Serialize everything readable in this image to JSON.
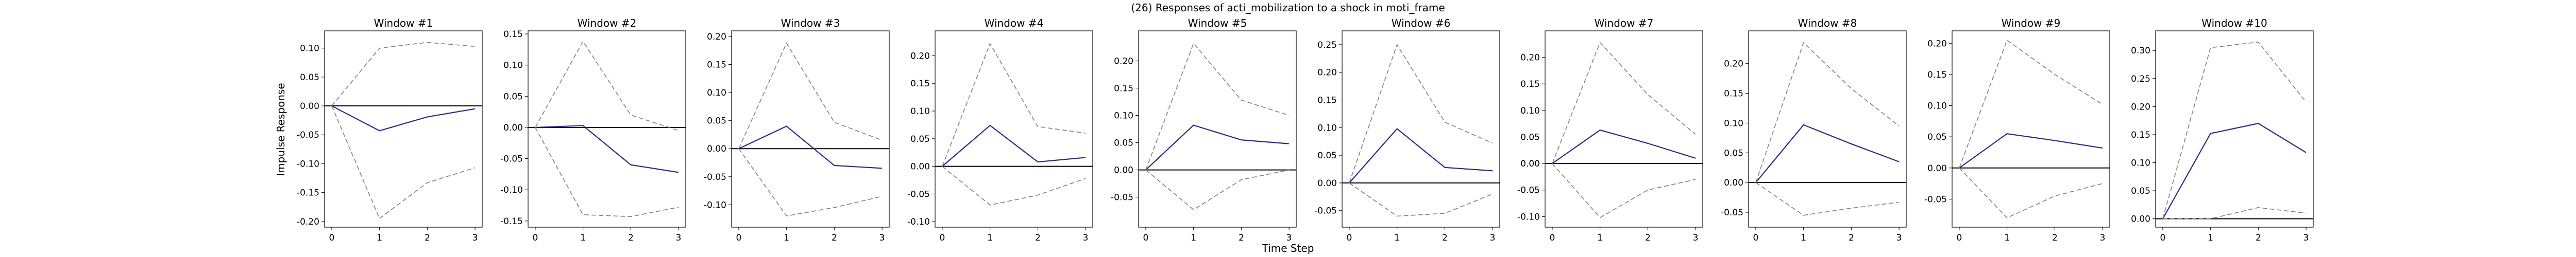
{
  "figure": {
    "suptitle": "(26) Responses of acti_mobilization to a shock in moti_frame",
    "xlabel": "Time Step",
    "ylabel": "Impulse Response"
  },
  "colors": {
    "response_line": "#2b2b85",
    "bands": "#808080",
    "zero_line": "#000000",
    "axes": "#000000"
  },
  "chart_data": [
    {
      "type": "line",
      "title": "Window #1",
      "x": [
        0,
        1,
        2,
        3
      ],
      "ylim": [
        -0.21,
        0.13
      ],
      "yticks": [
        -0.2,
        -0.15,
        -0.1,
        -0.05,
        0.0,
        0.05,
        0.1
      ],
      "series": [
        {
          "role": "response",
          "values": [
            0.0,
            -0.043,
            -0.019,
            -0.005
          ]
        },
        {
          "role": "upper",
          "values": [
            0.0,
            0.1,
            0.11,
            0.103
          ]
        },
        {
          "role": "lower",
          "values": [
            0.0,
            -0.195,
            -0.133,
            -0.107
          ]
        }
      ]
    },
    {
      "type": "line",
      "title": "Window #2",
      "x": [
        0,
        1,
        2,
        3
      ],
      "ylim": [
        -0.16,
        0.155
      ],
      "yticks": [
        -0.15,
        -0.1,
        -0.05,
        0.0,
        0.05,
        0.1,
        0.15
      ],
      "series": [
        {
          "role": "response",
          "values": [
            0.0,
            0.003,
            -0.06,
            -0.072
          ]
        },
        {
          "role": "upper",
          "values": [
            0.0,
            0.138,
            0.02,
            -0.005
          ]
        },
        {
          "role": "lower",
          "values": [
            0.0,
            -0.14,
            -0.143,
            -0.128
          ]
        }
      ]
    },
    {
      "type": "line",
      "title": "Window #3",
      "x": [
        0,
        1,
        2,
        3
      ],
      "ylim": [
        -0.14,
        0.21
      ],
      "yticks": [
        -0.1,
        -0.05,
        0.0,
        0.05,
        0.1,
        0.15,
        0.2
      ],
      "series": [
        {
          "role": "response",
          "values": [
            0.0,
            0.04,
            -0.03,
            -0.035
          ]
        },
        {
          "role": "upper",
          "values": [
            0.0,
            0.188,
            0.047,
            0.015
          ]
        },
        {
          "role": "lower",
          "values": [
            0.0,
            -0.12,
            -0.105,
            -0.085
          ]
        }
      ]
    },
    {
      "type": "line",
      "title": "Window #4",
      "x": [
        0,
        1,
        2,
        3
      ],
      "ylim": [
        -0.11,
        0.245
      ],
      "yticks": [
        -0.1,
        -0.05,
        0.0,
        0.05,
        0.1,
        0.15,
        0.2
      ],
      "series": [
        {
          "role": "response",
          "values": [
            0.0,
            0.074,
            0.008,
            0.016
          ]
        },
        {
          "role": "upper",
          "values": [
            0.0,
            0.222,
            0.072,
            0.06
          ]
        },
        {
          "role": "lower",
          "values": [
            0.0,
            -0.07,
            -0.052,
            -0.022
          ]
        }
      ]
    },
    {
      "type": "line",
      "title": "Window #5",
      "x": [
        0,
        1,
        2,
        3
      ],
      "ylim": [
        -0.105,
        0.255
      ],
      "yticks": [
        -0.05,
        0.0,
        0.05,
        0.1,
        0.15,
        0.2
      ],
      "series": [
        {
          "role": "response",
          "values": [
            0.0,
            0.082,
            0.055,
            0.048
          ]
        },
        {
          "role": "upper",
          "values": [
            0.0,
            0.232,
            0.128,
            0.1
          ]
        },
        {
          "role": "lower",
          "values": [
            0.0,
            -0.073,
            -0.018,
            0.0
          ]
        }
      ]
    },
    {
      "type": "line",
      "title": "Window #6",
      "x": [
        0,
        1,
        2,
        3
      ],
      "ylim": [
        -0.08,
        0.275
      ],
      "yticks": [
        -0.05,
        0.0,
        0.05,
        0.1,
        0.15,
        0.2,
        0.25
      ],
      "series": [
        {
          "role": "response",
          "values": [
            0.0,
            0.098,
            0.028,
            0.022
          ]
        },
        {
          "role": "upper",
          "values": [
            0.0,
            0.25,
            0.11,
            0.072
          ]
        },
        {
          "role": "lower",
          "values": [
            0.0,
            -0.06,
            -0.055,
            -0.02
          ]
        }
      ]
    },
    {
      "type": "line",
      "title": "Window #7",
      "x": [
        0,
        1,
        2,
        3
      ],
      "ylim": [
        -0.12,
        0.25
      ],
      "yticks": [
        -0.1,
        -0.05,
        0.0,
        0.05,
        0.1,
        0.15,
        0.2
      ],
      "series": [
        {
          "role": "response",
          "values": [
            0.0,
            0.063,
            0.038,
            0.01
          ]
        },
        {
          "role": "upper",
          "values": [
            0.0,
            0.228,
            0.13,
            0.055
          ]
        },
        {
          "role": "lower",
          "values": [
            0.0,
            -0.102,
            -0.05,
            -0.03
          ]
        }
      ]
    },
    {
      "type": "line",
      "title": "Window #8",
      "x": [
        0,
        1,
        2,
        3
      ],
      "ylim": [
        -0.075,
        0.255
      ],
      "yticks": [
        -0.05,
        0.0,
        0.05,
        0.1,
        0.15,
        0.2
      ],
      "series": [
        {
          "role": "response",
          "values": [
            0.0,
            0.097,
            0.065,
            0.035
          ]
        },
        {
          "role": "upper",
          "values": [
            0.0,
            0.235,
            0.158,
            0.095
          ]
        },
        {
          "role": "lower",
          "values": [
            0.0,
            -0.055,
            -0.043,
            -0.033
          ]
        }
      ]
    },
    {
      "type": "line",
      "title": "Window #9",
      "x": [
        0,
        1,
        2,
        3
      ],
      "ylim": [
        -0.095,
        0.22
      ],
      "yticks": [
        -0.05,
        0.0,
        0.05,
        0.1,
        0.15,
        0.2
      ],
      "series": [
        {
          "role": "response",
          "values": [
            0.0,
            0.055,
            0.044,
            0.032
          ]
        },
        {
          "role": "upper",
          "values": [
            0.0,
            0.205,
            0.15,
            0.102
          ]
        },
        {
          "role": "lower",
          "values": [
            0.0,
            -0.08,
            -0.045,
            -0.025
          ]
        }
      ]
    },
    {
      "type": "line",
      "title": "Window #10",
      "x": [
        0,
        1,
        2,
        3
      ],
      "ylim": [
        -0.015,
        0.335
      ],
      "yticks": [
        0.0,
        0.05,
        0.1,
        0.15,
        0.2,
        0.25,
        0.3
      ],
      "series": [
        {
          "role": "response",
          "values": [
            0.0,
            0.152,
            0.17,
            0.118
          ]
        },
        {
          "role": "upper",
          "values": [
            0.0,
            0.305,
            0.315,
            0.208
          ]
        },
        {
          "role": "lower",
          "values": [
            0.0,
            0.0,
            0.02,
            0.01
          ]
        }
      ]
    }
  ]
}
